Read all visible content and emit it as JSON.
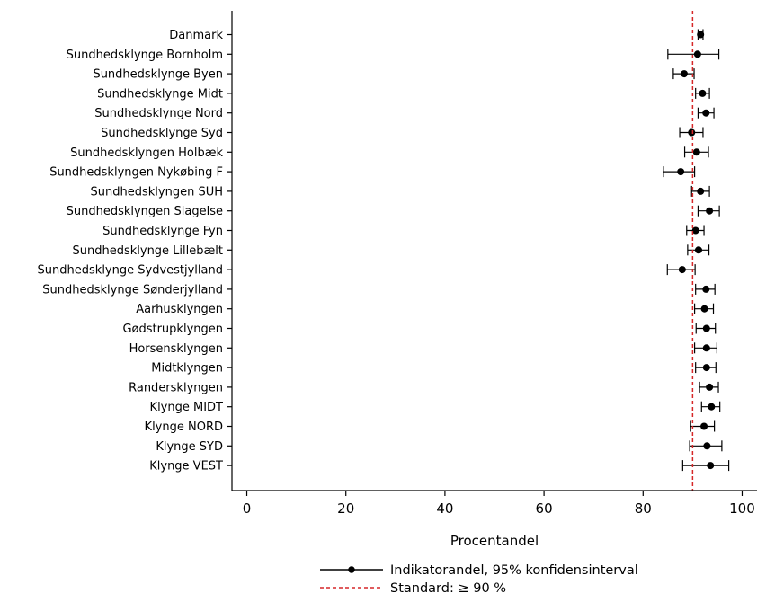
{
  "chart_data": {
    "type": "scatter",
    "orientation": "horizontal",
    "xlabel": "Procentandel",
    "xlim": [
      -3,
      103
    ],
    "xticks": [
      0,
      20,
      40,
      60,
      80,
      100
    ],
    "grid": false,
    "legend_placement": "bottom-center",
    "legend": {
      "series_label": "Indikatorandel, 95% konfidensinterval",
      "standard_label": "Standard: ≥ 90 %"
    },
    "standard": 90,
    "colors": {
      "points": "#000000",
      "standard": "#d62728"
    },
    "categories": [
      "Danmark",
      "Sundhedsklynge Bornholm",
      "Sundhedsklynge Byen",
      "Sundhedsklynge Midt",
      "Sundhedsklynge Nord",
      "Sundhedsklynge Syd",
      "Sundhedsklyngen Holbæk",
      "Sundhedsklyngen Nykøbing F",
      "Sundhedsklyngen SUH",
      "Sundhedsklyngen Slagelse",
      "Sundhedsklynge Fyn",
      "Sundhedsklynge Lillebælt",
      "Sundhedsklynge Sydvestjylland",
      "Sundhedsklynge Sønderjylland",
      "Aarhusklyngen",
      "Gødstrupklyngen",
      "Horsensklyngen",
      "Midtklyngen",
      "Randersklyngen",
      "Klynge MIDT",
      "Klynge NORD",
      "Klynge SYD",
      "Klynge VEST"
    ],
    "values": [
      91.6,
      91.0,
      88.3,
      92.0,
      92.7,
      89.8,
      90.8,
      87.6,
      91.6,
      93.4,
      90.6,
      91.2,
      87.9,
      92.7,
      92.4,
      92.8,
      92.8,
      92.8,
      93.4,
      93.8,
      92.3,
      92.9,
      93.6
    ],
    "ci_lower": [
      91.1,
      85.0,
      86.1,
      90.6,
      91.1,
      87.4,
      88.4,
      84.1,
      89.8,
      91.1,
      88.8,
      89.0,
      84.9,
      90.6,
      90.4,
      90.7,
      90.4,
      90.6,
      91.4,
      91.8,
      89.6,
      89.4,
      88.0
    ],
    "ci_upper": [
      92.1,
      95.3,
      90.3,
      93.4,
      94.3,
      92.1,
      93.2,
      90.4,
      93.4,
      95.4,
      92.3,
      93.3,
      90.5,
      94.5,
      94.2,
      94.6,
      94.9,
      94.7,
      95.2,
      95.5,
      94.4,
      95.9,
      97.3
    ]
  }
}
